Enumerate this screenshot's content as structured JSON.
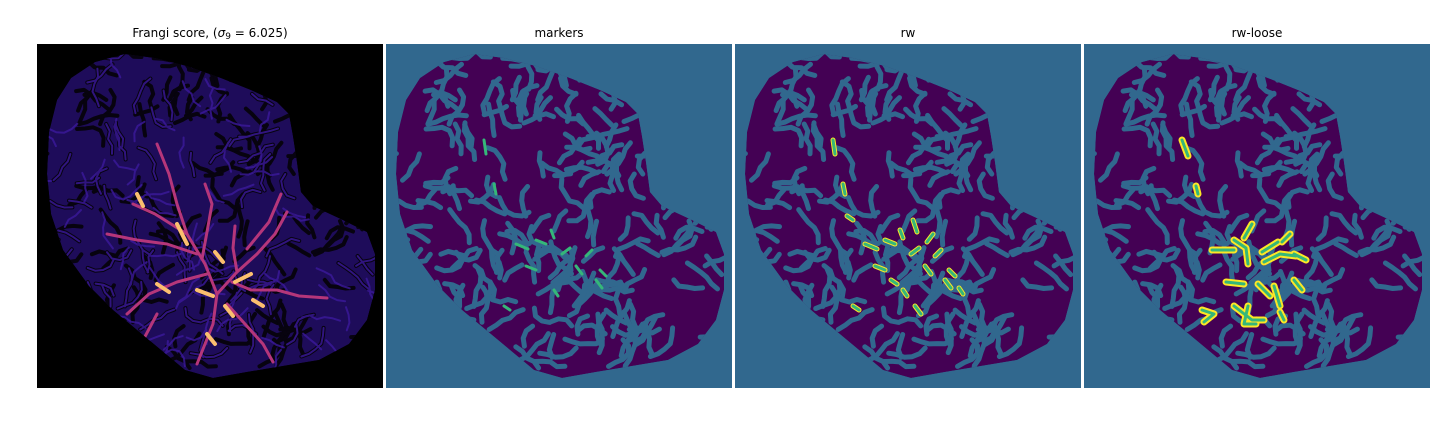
{
  "figure": {
    "panels": [
      {
        "title_prefix": "Frangi score, (",
        "title_sigma": "σ",
        "title_sub": "9",
        "title_suffix": " = 6.025)",
        "colormap": "magma"
      },
      {
        "title": "markers",
        "colormap": "viridis"
      },
      {
        "title": "rw",
        "colormap": "viridis"
      },
      {
        "title": "rw-loose",
        "colormap": "viridis"
      }
    ]
  },
  "colors": {
    "magma_background": "#000000",
    "magma_tissue": "#1e0c5a",
    "magma_vessel_mid": "#b5367a",
    "magma_vessel_high": "#fcbf6f",
    "viridis_background": "#31688e",
    "viridis_tissue": "#440154",
    "viridis_marker": "#35b779",
    "viridis_high": "#fde725"
  }
}
